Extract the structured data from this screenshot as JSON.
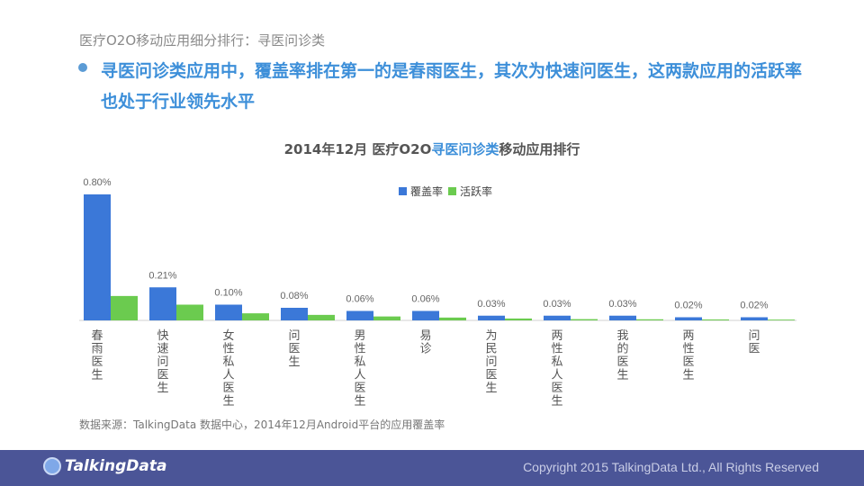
{
  "header": {
    "title": "医疗O2O移动应用细分排行：寻医问诊类",
    "headline": "寻医问诊类应用中，覆盖率排在第一的是春雨医生，其次为快速问医生，这两款应用的活跃率也处于行业领先水平"
  },
  "chart_data": {
    "type": "bar",
    "title_prefix": "2014年12月 医疗O2O",
    "title_highlight": "寻医问诊类",
    "title_suffix": "移动应用排行",
    "categories": [
      "春雨医生",
      "快速问医生",
      "女性私人医生",
      "问医生",
      "男性私人医生",
      "易诊",
      "为民问医生",
      "两性私人医生",
      "我的医生",
      "两性医生",
      "问医"
    ],
    "series": [
      {
        "name": "覆盖率",
        "color": "#3b78d8",
        "values": [
          0.8,
          0.21,
          0.1,
          0.08,
          0.06,
          0.06,
          0.03,
          0.03,
          0.03,
          0.02,
          0.02
        ]
      },
      {
        "name": "活跃率",
        "color": "#6bcb4f",
        "values": [
          0.155,
          0.1,
          0.045,
          0.035,
          0.025,
          0.018,
          0.012,
          0.008,
          0.007,
          0.006,
          0.005
        ]
      }
    ],
    "value_labels": [
      "0.80%",
      "0.21%",
      "0.10%",
      "0.08%",
      "0.06%",
      "0.06%",
      "0.03%",
      "0.03%",
      "0.03%",
      "0.02%",
      "0.02%"
    ],
    "ylim": [
      0,
      0.8
    ],
    "grid": false,
    "legend_position": "top-center"
  },
  "source_note": "数据来源：TalkingData 数据中心，2014年12月Android平台的应用覆盖率",
  "footer": {
    "logo_text": "TalkingData",
    "copyright": "Copyright 2015 TalkingData Ltd., All Rights Reserved"
  }
}
